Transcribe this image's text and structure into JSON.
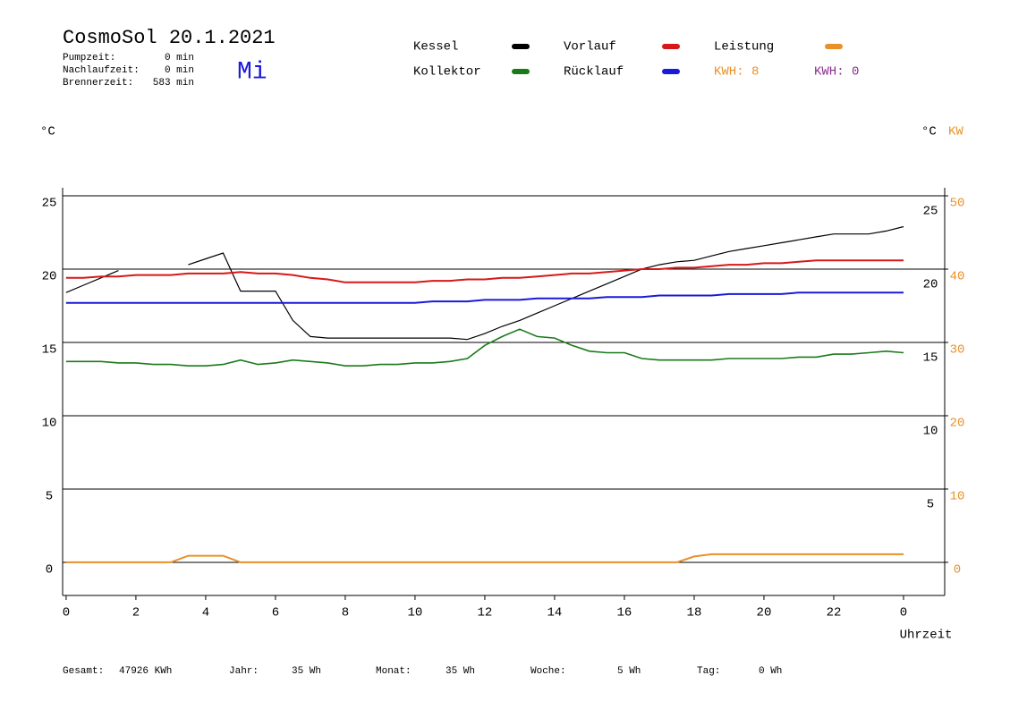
{
  "chart_data": {
    "type": "line",
    "title": "CosmoSol 20.1.2021",
    "day": "Mi",
    "info": [
      {
        "label": "Pumpzeit:",
        "value": "0 min"
      },
      {
        "label": "Nachlaufzeit:",
        "value": "0 min"
      },
      {
        "label": "Brennerzeit:",
        "value": "583 min"
      }
    ],
    "energy_labels": [
      {
        "text": "KWH: 8",
        "color": "#e8902a"
      },
      {
        "text": "KWH: 0",
        "color": "#8a2f8a"
      }
    ],
    "y_unit": "°C",
    "y_right_unit": "°C",
    "y2_unit": "KW",
    "x_label": "Uhrzeit",
    "footer": [
      {
        "label": "Gesamt:",
        "value": "47926 KWh"
      },
      {
        "label": "Jahr:",
        "value": "35 Wh"
      },
      {
        "label": "Monat:",
        "value": "35 Wh"
      },
      {
        "label": "Woche:",
        "value": "5 Wh"
      },
      {
        "label": "Tag:",
        "value": "0 Wh"
      }
    ],
    "xlim": [
      -0.1,
      25.18
    ],
    "xticks": [
      0,
      2,
      4,
      6,
      8,
      10,
      12,
      14,
      16,
      18,
      20,
      22,
      {
        "value": 24,
        "label": "0"
      }
    ],
    "ylim": [
      -2.26,
      25.55
    ],
    "yticks": [
      0,
      5,
      10,
      15,
      20,
      25
    ],
    "y_right_ticks": [
      5,
      10,
      15,
      20,
      25
    ],
    "y2lim": [
      -4.52,
      51.1
    ],
    "y2ticks": [
      0,
      10,
      20,
      30,
      40,
      50
    ],
    "y2_color": "#e8902a",
    "grid": true,
    "x": [
      0,
      0.5,
      1,
      1.5,
      2,
      2.5,
      3,
      3.5,
      4,
      4.5,
      5,
      5.5,
      6,
      6.5,
      7,
      7.5,
      8,
      8.5,
      9,
      9.5,
      10,
      10.5,
      11,
      11.5,
      12,
      12.5,
      13,
      13.5,
      14,
      14.5,
      15,
      15.5,
      16,
      16.5,
      17,
      17.5,
      18,
      18.5,
      19,
      19.5,
      20,
      20.5,
      21,
      21.5,
      22,
      22.5,
      23,
      23.5,
      24
    ],
    "series": [
      {
        "name": "Kessel",
        "color": "#000000",
        "values": [
          18.4,
          18.9,
          19.4,
          19.9,
          null,
          null,
          null,
          20.3,
          20.7,
          21.1,
          18.5,
          18.5,
          18.5,
          16.5,
          15.4,
          15.3,
          15.3,
          15.3,
          15.3,
          15.3,
          15.3,
          15.3,
          15.3,
          15.2,
          15.6,
          16.1,
          16.5,
          17.0,
          17.5,
          18.0,
          18.5,
          19.0,
          19.5,
          20.0,
          20.3,
          20.5,
          20.6,
          20.9,
          21.2,
          21.4,
          21.6,
          21.8,
          22.0,
          22.2,
          22.4,
          22.4,
          22.4,
          22.6,
          22.9
        ]
      },
      {
        "name": "Kollektor",
        "color": "#1a7a1a",
        "values": [
          13.7,
          13.7,
          13.7,
          13.6,
          13.6,
          13.5,
          13.5,
          13.4,
          13.4,
          13.5,
          13.8,
          13.5,
          13.6,
          13.8,
          13.7,
          13.6,
          13.4,
          13.4,
          13.5,
          13.5,
          13.6,
          13.6,
          13.7,
          13.9,
          14.8,
          15.4,
          15.9,
          15.4,
          15.3,
          14.8,
          14.4,
          14.3,
          14.3,
          13.9,
          13.8,
          13.8,
          13.8,
          13.8,
          13.9,
          13.9,
          13.9,
          13.9,
          14.0,
          14.0,
          14.2,
          14.2,
          14.3,
          14.4,
          14.3
        ]
      },
      {
        "name": "Vorlauf",
        "color": "#d81818",
        "values": [
          19.4,
          19.4,
          19.5,
          19.5,
          19.6,
          19.6,
          19.6,
          19.7,
          19.7,
          19.7,
          19.8,
          19.7,
          19.7,
          19.6,
          19.4,
          19.3,
          19.1,
          19.1,
          19.1,
          19.1,
          19.1,
          19.2,
          19.2,
          19.3,
          19.3,
          19.4,
          19.4,
          19.5,
          19.6,
          19.7,
          19.7,
          19.8,
          19.9,
          20.0,
          20.0,
          20.1,
          20.1,
          20.2,
          20.3,
          20.3,
          20.4,
          20.4,
          20.5,
          20.6,
          20.6,
          20.6,
          20.6,
          20.6,
          20.6
        ]
      },
      {
        "name": "Rücklauf",
        "color": "#1a1ad8",
        "values": [
          17.7,
          17.7,
          17.7,
          17.7,
          17.7,
          17.7,
          17.7,
          17.7,
          17.7,
          17.7,
          17.7,
          17.7,
          17.7,
          17.7,
          17.7,
          17.7,
          17.7,
          17.7,
          17.7,
          17.7,
          17.7,
          17.8,
          17.8,
          17.8,
          17.9,
          17.9,
          17.9,
          18.0,
          18.0,
          18.0,
          18.0,
          18.1,
          18.1,
          18.1,
          18.2,
          18.2,
          18.2,
          18.2,
          18.3,
          18.3,
          18.3,
          18.3,
          18.4,
          18.4,
          18.4,
          18.4,
          18.4,
          18.4,
          18.4
        ]
      },
      {
        "name": "Leistung",
        "color": "#e8902a",
        "axis": "y2",
        "values": [
          0,
          0,
          0,
          0,
          0,
          0,
          0,
          0.9,
          0.9,
          0.9,
          0,
          0,
          0,
          0,
          0,
          0,
          0,
          0,
          0,
          0,
          0,
          0,
          0,
          0,
          0,
          0,
          0,
          0,
          0,
          0,
          0,
          0,
          0,
          0,
          0,
          0,
          0.8,
          1.1,
          1.1,
          1.1,
          1.1,
          1.1,
          1.1,
          1.1,
          1.1,
          1.1,
          1.1,
          1.1,
          1.1
        ]
      }
    ]
  }
}
